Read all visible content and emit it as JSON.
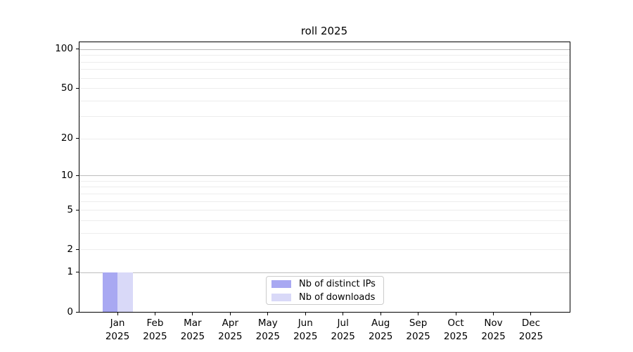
{
  "figure": {
    "background": "#ffffff"
  },
  "chart_data": {
    "type": "bar",
    "title": "roll 2025",
    "categories": [
      "Jan",
      "Feb",
      "Mar",
      "Apr",
      "May",
      "Jun",
      "Jul",
      "Aug",
      "Sep",
      "Oct",
      "Nov",
      "Dec"
    ],
    "category_year": "2025",
    "series": [
      {
        "name": "Nb of distinct IPs",
        "color": "#a8a8f2",
        "values": [
          1,
          0,
          0,
          0,
          0,
          0,
          0,
          0,
          0,
          0,
          0,
          0
        ]
      },
      {
        "name": "Nb of downloads",
        "color": "#d9d9f8",
        "values": [
          1,
          0,
          0,
          0,
          0,
          0,
          0,
          0,
          0,
          0,
          0,
          0
        ]
      }
    ],
    "xlabel": "",
    "ylabel": "",
    "yscale": "log1p",
    "ylim": [
      0,
      113
    ],
    "yticks": [
      0,
      1,
      2,
      5,
      10,
      20,
      50,
      100
    ],
    "yticks_strong_grid": [
      1,
      10,
      100
    ],
    "yminor": [
      3,
      4,
      6,
      7,
      8,
      9,
      30,
      40,
      60,
      70,
      80,
      90
    ],
    "grid": true,
    "legend_position": "lower center"
  },
  "colors": {
    "axis": "#000000",
    "grid_strong": "#bdbdbd",
    "grid_soft": "#ededed",
    "legend_border": "#cccccc",
    "text": "#000000"
  }
}
